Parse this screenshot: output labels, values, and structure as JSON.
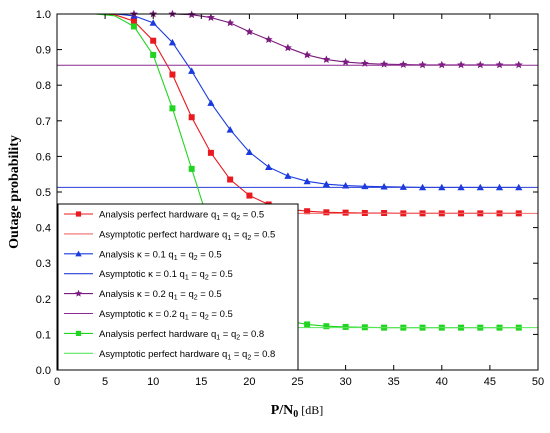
{
  "chart_data": {
    "type": "line",
    "xlabel_main": "P/N",
    "xlabel_sub": "0",
    "xlabel_unit": " [dB]",
    "ylabel": "Outage probability",
    "xlim": [
      0,
      50
    ],
    "ylim": [
      0,
      1
    ],
    "x_ticks": [
      "0",
      "5",
      "10",
      "15",
      "20",
      "25",
      "30",
      "35",
      "40",
      "45",
      "50"
    ],
    "y_ticks": [
      "0.0",
      "0.1",
      "0.2",
      "0.3",
      "0.4",
      "0.5",
      "0.6",
      "0.7",
      "0.8",
      "0.9",
      "1.0"
    ],
    "legend_position": "lower-left",
    "series": [
      {
        "name": "Analysis perfect hardware q1 = q2 = 0.5",
        "label_pre": "Analysis perfect hardware q",
        "label_mid": " = q",
        "label_post": " = 0.5",
        "kind": "analysis",
        "marker": "square",
        "color": "#e8191f",
        "x": [
          0,
          2,
          4,
          6,
          8,
          10,
          12,
          14,
          16,
          18,
          20,
          22,
          24,
          26,
          28,
          30,
          32,
          34,
          36,
          38,
          40,
          42,
          44,
          46,
          48
        ],
        "y": [
          1.0,
          1.0,
          1.0,
          0.998,
          0.98,
          0.925,
          0.83,
          0.71,
          0.61,
          0.535,
          0.49,
          0.465,
          0.452,
          0.446,
          0.443,
          0.442,
          0.441,
          0.441,
          0.44,
          0.44,
          0.44,
          0.44,
          0.44,
          0.44,
          0.44
        ]
      },
      {
        "name": "Asymptotic perfect hardware q1 = q2 = 0.5",
        "label_pre": "Asymptotic perfect hardware q",
        "label_mid": " = q",
        "label_post": " = 0.5",
        "kind": "asymptotic",
        "color": "#f26b6b",
        "y_const": 0.44
      },
      {
        "name": "Analysis κ = 0.1 q1 = q2 = 0.5",
        "label_pre": "Analysis κ = 0.1 q",
        "label_mid": " = q",
        "label_post": " = 0.5",
        "kind": "analysis",
        "marker": "triangle",
        "color": "#1a3ae0",
        "x": [
          0,
          2,
          4,
          6,
          8,
          10,
          12,
          14,
          16,
          18,
          20,
          22,
          24,
          26,
          28,
          30,
          32,
          34,
          36,
          38,
          40,
          42,
          44,
          46,
          48
        ],
        "y": [
          1.0,
          1.0,
          1.0,
          1.0,
          0.995,
          0.975,
          0.92,
          0.84,
          0.75,
          0.675,
          0.612,
          0.57,
          0.545,
          0.53,
          0.522,
          0.518,
          0.516,
          0.515,
          0.514,
          0.513,
          0.513,
          0.513,
          0.513,
          0.513,
          0.513
        ]
      },
      {
        "name": "Asymptotic κ = 0.1 q1 = q2 = 0.5",
        "label_pre": "Asymptotic κ = 0.1 q",
        "label_mid": " = q",
        "label_post": " = 0.5",
        "kind": "asymptotic",
        "color": "#2a3fd8",
        "y_const": 0.513
      },
      {
        "name": "Analysis κ = 0.2 q1 = q2 = 0.5",
        "label_pre": "Analysis κ = 0.2 q",
        "label_mid": " = q",
        "label_post": " = 0.5",
        "kind": "analysis",
        "marker": "star",
        "color": "#7b1a7e",
        "x": [
          0,
          2,
          4,
          6,
          8,
          10,
          12,
          14,
          16,
          18,
          20,
          22,
          24,
          26,
          28,
          30,
          32,
          34,
          36,
          38,
          40,
          42,
          44,
          46,
          48
        ],
        "y": [
          1.0,
          1.0,
          1.0,
          1.0,
          1.0,
          1.0,
          1.0,
          0.998,
          0.99,
          0.975,
          0.95,
          0.928,
          0.905,
          0.885,
          0.872,
          0.865,
          0.861,
          0.859,
          0.858,
          0.857,
          0.857,
          0.857,
          0.857,
          0.857,
          0.857
        ]
      },
      {
        "name": "Asymptotic κ = 0.2 q1 = q2 = 0.5",
        "label_pre": "Asymptotic κ = 0.2 q",
        "label_mid": " = q",
        "label_post": " = 0.5",
        "kind": "asymptotic",
        "color": "#8e2a92",
        "y_const": 0.856
      },
      {
        "name": "Analysis perfect hardware q1 = q2 = 0.8",
        "label_pre": "Analysis perfect hardware q",
        "label_mid": " = q",
        "label_post": " = 0.8",
        "kind": "analysis",
        "marker": "square",
        "color": "#22d422",
        "x": [
          0,
          2,
          4,
          6,
          8,
          10,
          12,
          14,
          16,
          18,
          20,
          22,
          24,
          26,
          28,
          30,
          32,
          34,
          36,
          38,
          40,
          42,
          44,
          46,
          48
        ],
        "y": [
          1.0,
          1.0,
          1.0,
          0.995,
          0.965,
          0.885,
          0.735,
          0.565,
          0.395,
          0.27,
          0.195,
          0.158,
          0.138,
          0.128,
          0.123,
          0.121,
          0.12,
          0.119,
          0.119,
          0.119,
          0.119,
          0.119,
          0.119,
          0.119,
          0.119
        ]
      },
      {
        "name": "Asymptotic perfect hardware q1 = q2 = 0.8",
        "label_pre": "Asymptotic perfect hardware q",
        "label_mid": " = q",
        "label_post": " = 0.8",
        "kind": "asymptotic",
        "color": "#5be65b",
        "y_const": 0.119
      }
    ]
  }
}
